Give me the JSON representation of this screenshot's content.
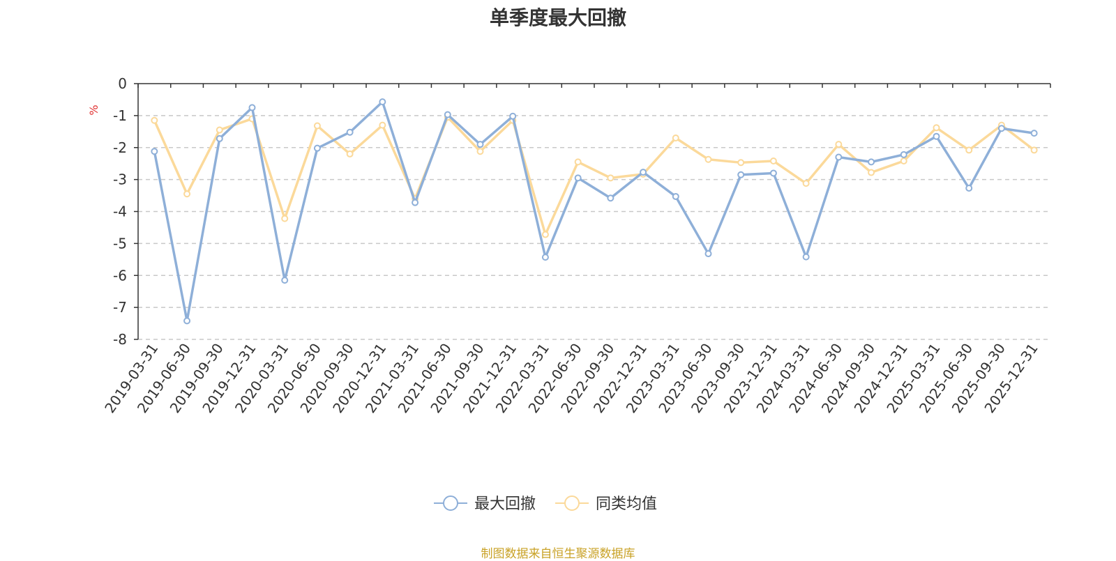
{
  "source_note": "制图数据来自恒生聚源数据库",
  "chart_data": {
    "type": "line",
    "title": "单季度最大回撤",
    "ylabel": "%",
    "xlabel": "",
    "ylim": [
      -8,
      0
    ],
    "yticks": [
      0,
      -1,
      -2,
      -3,
      -4,
      -5,
      -6,
      -7,
      -8
    ],
    "grid": true,
    "legend_position": "bottom-center",
    "categories": [
      "2019-03-31",
      "2019-06-30",
      "2019-09-30",
      "2019-12-31",
      "2020-03-31",
      "2020-06-30",
      "2020-09-30",
      "2020-12-31",
      "2021-03-31",
      "2021-06-30",
      "2021-09-30",
      "2021-12-31",
      "2022-03-31",
      "2022-06-30",
      "2022-09-30",
      "2022-12-31",
      "2023-03-31",
      "2023-06-30",
      "2023-09-30",
      "2023-12-31",
      "2024-03-31",
      "2024-06-30",
      "2024-09-30",
      "2024-12-31",
      "2025-03-31",
      "2025-06-30",
      "2025-09-30",
      "2025-12-31"
    ],
    "series": [
      {
        "name": "最大回撤",
        "color": "#8eafd8",
        "values": [
          -2.12,
          -7.42,
          -1.72,
          -0.75,
          -6.15,
          -2.02,
          -1.52,
          -0.57,
          -3.72,
          -0.97,
          -1.9,
          -1.02,
          -5.43,
          -2.95,
          -3.58,
          -2.77,
          -3.53,
          -5.32,
          -2.85,
          -2.8,
          -5.42,
          -2.3,
          -2.45,
          -2.22,
          -1.65,
          -3.27,
          -1.4,
          -1.55
        ]
      },
      {
        "name": "同类均值",
        "color": "#fbd99a",
        "values": [
          -1.15,
          -3.45,
          -1.45,
          -1.1,
          -4.22,
          -1.32,
          -2.2,
          -1.3,
          -3.6,
          -1.05,
          -2.12,
          -1.15,
          -4.72,
          -2.45,
          -2.95,
          -2.83,
          -1.7,
          -2.37,
          -2.47,
          -2.42,
          -3.12,
          -1.9,
          -2.78,
          -2.42,
          -1.38,
          -2.08,
          -1.3,
          -2.08
        ]
      }
    ]
  }
}
